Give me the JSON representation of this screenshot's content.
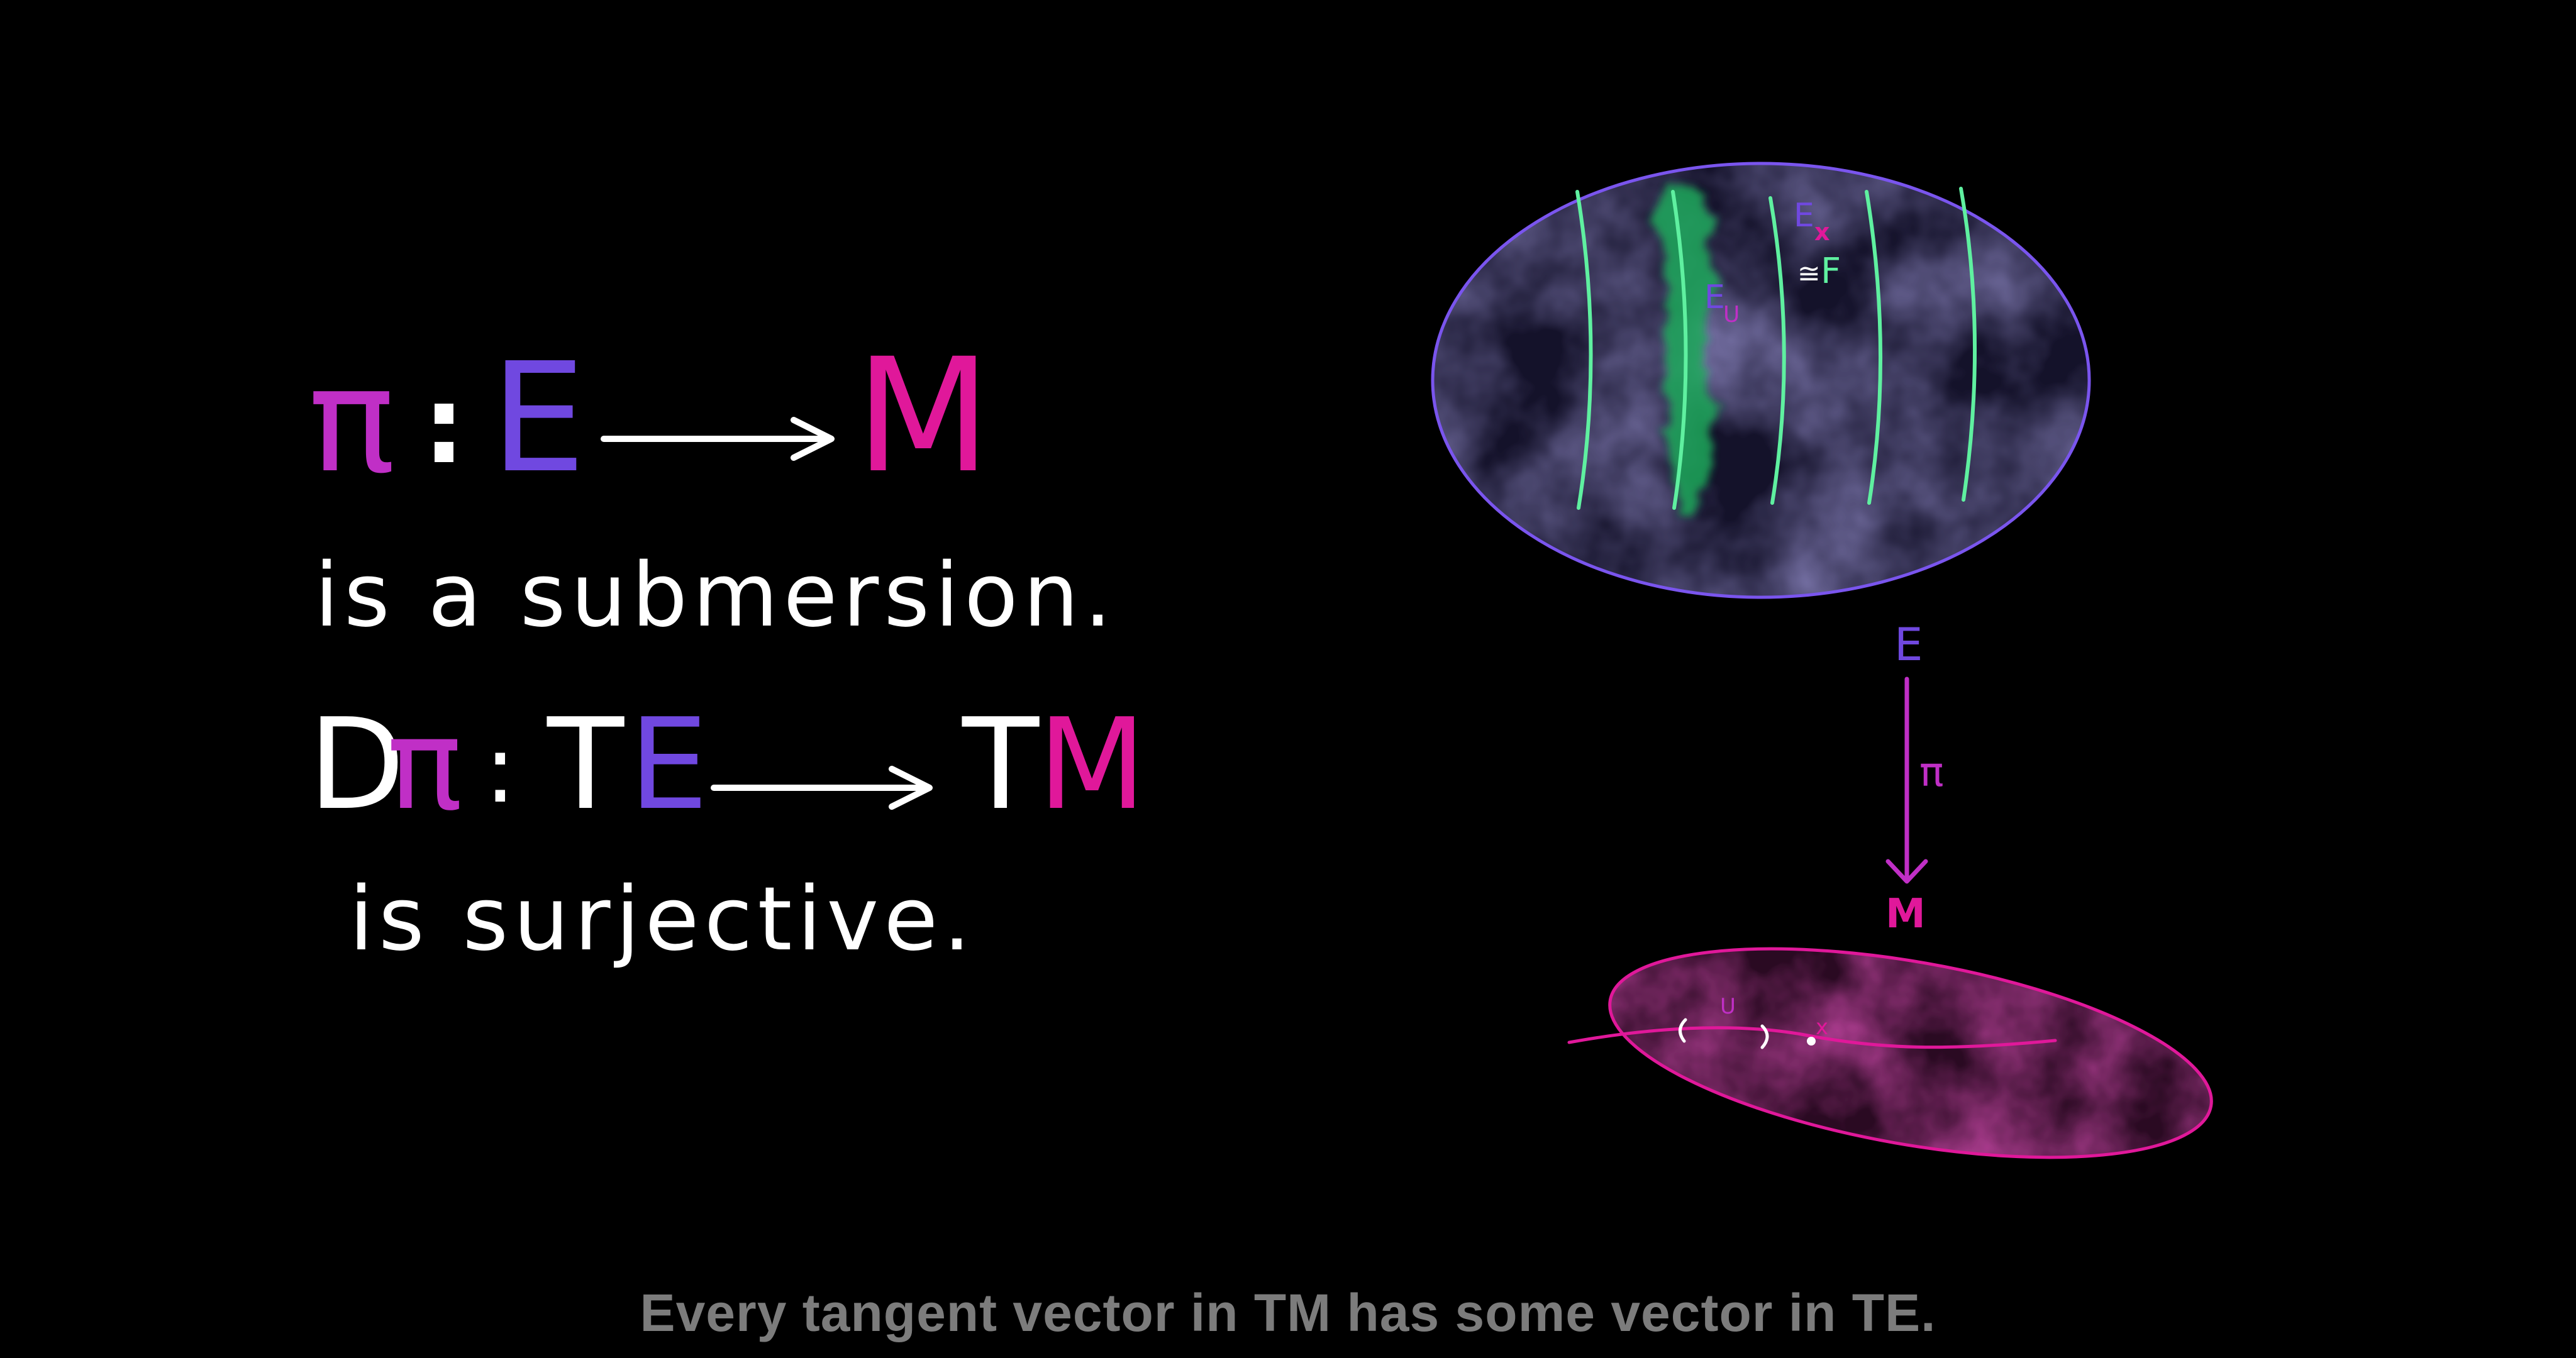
{
  "colors": {
    "background": "#000000",
    "ink": "#ffffff",
    "pi": "#c02fc6",
    "E": "#7048e0",
    "M": "#e0189a",
    "fiber": "#5ff0a0",
    "caption": "#7c7c7c"
  },
  "left": {
    "line1": {
      "pi": "π",
      "colon": ":",
      "E": "E",
      "M": "M"
    },
    "line2": "is a submersion.",
    "line3": {
      "D": "D",
      "pi": "π",
      "colon": ":",
      "T1": "T",
      "E": "E",
      "T2": "T",
      "M": "M"
    },
    "line4": "is surjective."
  },
  "diagram": {
    "total_space": {
      "fiber_label": "E",
      "fiber_sub": "x",
      "iso": "≅",
      "F": "F",
      "open_label": "E",
      "open_sub": "U"
    },
    "projection": {
      "top": "E",
      "map": "π",
      "bottom": "M"
    },
    "base": {
      "U": "U",
      "x": "x"
    }
  },
  "caption": "Every tangent vector in TM has some vector in TE."
}
